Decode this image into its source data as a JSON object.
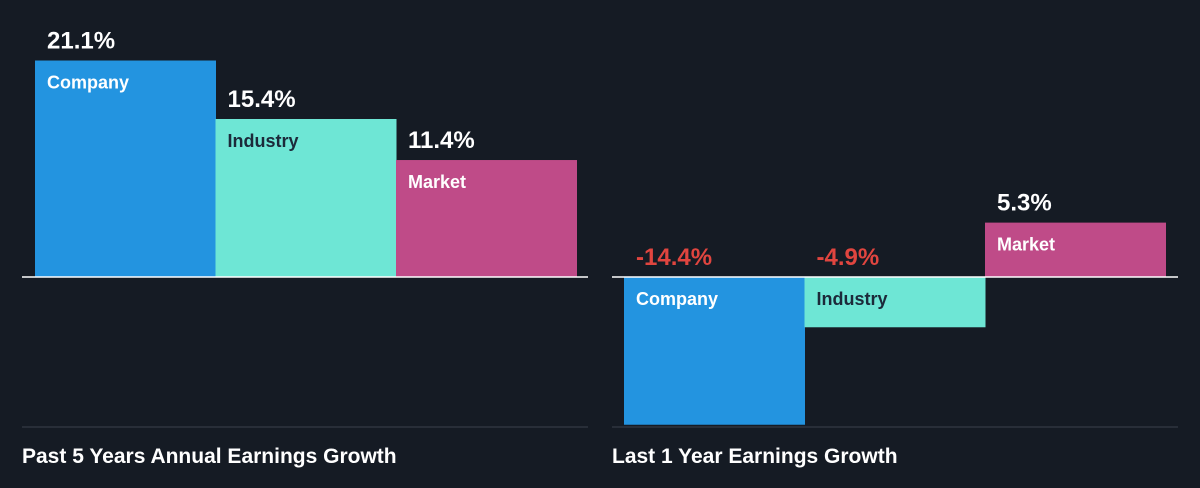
{
  "colors": {
    "background": "#151b24",
    "company": "#2394e0",
    "industry": "#6ee6d5",
    "market": "#bf4b88",
    "positive_label": "#ffffff",
    "negative_label": "#e0453f",
    "bar_label_dark": "#1c2a3a",
    "bar_label_light": "#ffffff",
    "axis": "#ffffff",
    "baseline": "#3a414b"
  },
  "chart_data": [
    {
      "type": "bar",
      "title": "Past 5 Years Annual Earnings Growth",
      "categories": [
        "Company",
        "Industry",
        "Market"
      ],
      "values": [
        21.1,
        15.4,
        11.4
      ],
      "value_labels": [
        "21.1%",
        "15.4%",
        "11.4%"
      ],
      "unit": "%",
      "xlabel": "",
      "ylabel": "",
      "grid": false,
      "legend": "none"
    },
    {
      "type": "bar",
      "title": "Last 1 Year Earnings Growth",
      "categories": [
        "Company",
        "Industry",
        "Market"
      ],
      "values": [
        -14.4,
        -4.9,
        5.3
      ],
      "value_labels": [
        "-14.4%",
        "-4.9%",
        "5.3%"
      ],
      "unit": "%",
      "xlabel": "",
      "ylabel": "",
      "grid": false,
      "legend": "none"
    }
  ]
}
